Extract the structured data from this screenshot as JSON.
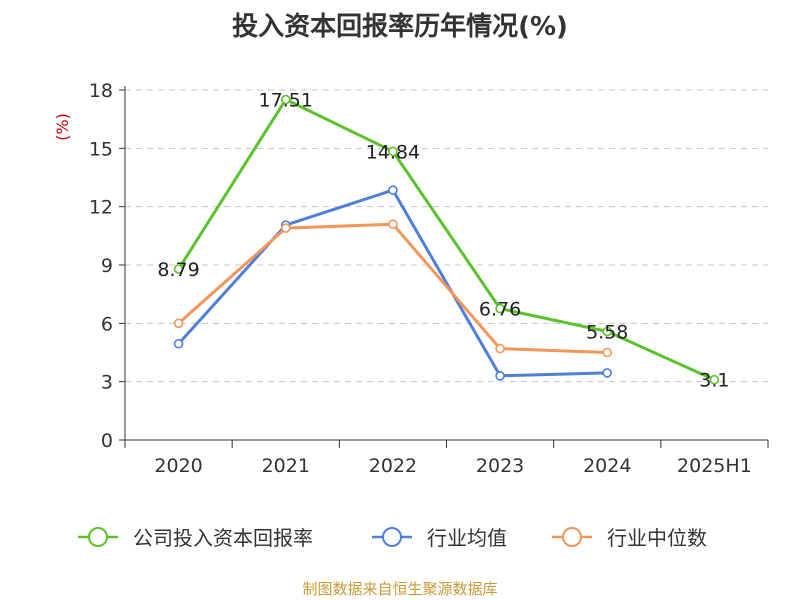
{
  "chart_data": {
    "type": "line",
    "title": "投入资本回报率历年情况(%)",
    "ylabel": "(%)",
    "categories": [
      "2020",
      "2021",
      "2022",
      "2023",
      "2024",
      "2025H1"
    ],
    "ylim": [
      0,
      18
    ],
    "yticks": [
      0,
      3,
      6,
      9,
      12,
      15,
      18
    ],
    "grid": true,
    "legend_position": "bottom",
    "series": [
      {
        "name": "公司投入资本回报率",
        "color": "#5cc22b",
        "values": [
          8.79,
          17.51,
          14.84,
          6.76,
          5.58,
          3.1
        ],
        "labels": [
          "8.79",
          "17.51",
          "14.84",
          "6.76",
          "5.58",
          "3.1"
        ]
      },
      {
        "name": "行业均值",
        "color": "#4f7fd9",
        "values": [
          4.95,
          11.05,
          12.85,
          3.3,
          3.45,
          null
        ]
      },
      {
        "name": "行业中位数",
        "color": "#f5955a",
        "values": [
          6.0,
          10.9,
          11.1,
          4.7,
          4.5,
          null
        ]
      }
    ]
  },
  "source": "制图数据来自恒生聚源数据库"
}
